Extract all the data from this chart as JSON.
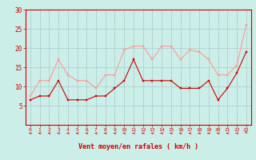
{
  "hours": [
    0,
    1,
    2,
    3,
    4,
    5,
    6,
    7,
    8,
    9,
    10,
    11,
    12,
    13,
    14,
    15,
    16,
    17,
    18,
    19,
    20,
    21,
    22,
    23
  ],
  "vent_moyen": [
    6.5,
    7.5,
    7.5,
    11.5,
    6.5,
    6.5,
    6.5,
    7.5,
    7.5,
    9.5,
    11.5,
    17.0,
    11.5,
    11.5,
    11.5,
    11.5,
    9.5,
    9.5,
    9.5,
    11.5,
    6.5,
    9.5,
    13.5,
    19.0
  ],
  "rafales": [
    7.5,
    11.5,
    11.5,
    17.0,
    13.0,
    11.5,
    11.5,
    9.5,
    13.0,
    13.0,
    19.5,
    20.5,
    20.5,
    17.0,
    20.5,
    20.5,
    17.0,
    19.5,
    19.0,
    17.0,
    13.0,
    13.0,
    15.5,
    26.0
  ],
  "color_moyen": "#cc0000",
  "color_rafales": "#ff9999",
  "bg_color": "#cceee8",
  "grid_color": "#aacccc",
  "xlabel": "Vent moyen/en rafales ( km/h )",
  "ylim": [
    0,
    30
  ],
  "yticks": [
    5,
    10,
    15,
    20,
    25,
    30
  ],
  "tick_color": "#cc0000",
  "spine_color": "#cc0000"
}
